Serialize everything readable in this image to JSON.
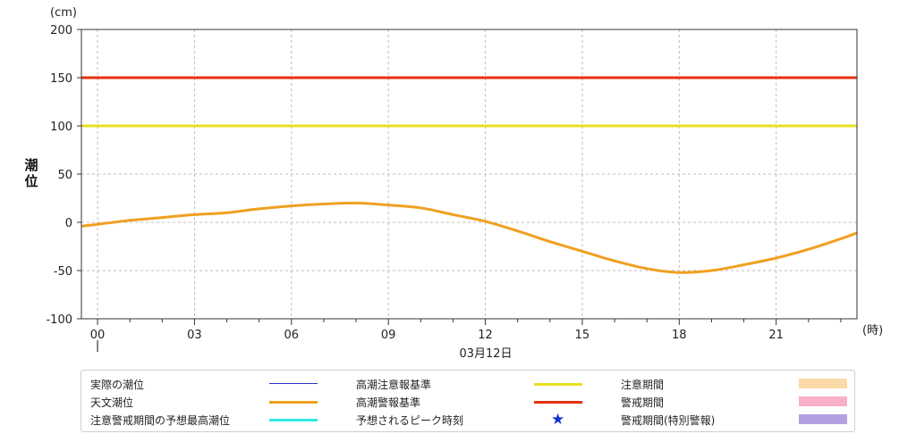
{
  "chart_data": {
    "type": "line",
    "ylabel": "潮位",
    "y_unit": "(cm)",
    "x_unit": "(時)",
    "date_label": "03月12日",
    "ylim": [
      -100,
      200
    ],
    "yticks": [
      -100,
      -50,
      0,
      50,
      100,
      150,
      200
    ],
    "xlim": [
      -0.5,
      23.5
    ],
    "xticks": [
      {
        "h": 0,
        "label": "00"
      },
      {
        "h": 3,
        "label": "03"
      },
      {
        "h": 6,
        "label": "06"
      },
      {
        "h": 9,
        "label": "09"
      },
      {
        "h": 12,
        "label": "12"
      },
      {
        "h": 15,
        "label": "15"
      },
      {
        "h": 18,
        "label": "18"
      },
      {
        "h": 21,
        "label": "21"
      }
    ],
    "grid": true,
    "series": [
      {
        "name": "天文潮位",
        "color": "#f0a020",
        "points": [
          [
            -0.5,
            -4
          ],
          [
            0,
            -2
          ],
          [
            1,
            2
          ],
          [
            2,
            5
          ],
          [
            3,
            8
          ],
          [
            4,
            10
          ],
          [
            5,
            14
          ],
          [
            6,
            17
          ],
          [
            7,
            19
          ],
          [
            8,
            20
          ],
          [
            9,
            18
          ],
          [
            10,
            15
          ],
          [
            11,
            8
          ],
          [
            12,
            1
          ],
          [
            13,
            -9
          ],
          [
            14,
            -20
          ],
          [
            15,
            -30
          ],
          [
            16,
            -40
          ],
          [
            17,
            -48
          ],
          [
            18,
            -52
          ],
          [
            19,
            -50
          ],
          [
            20,
            -44
          ],
          [
            21,
            -37
          ],
          [
            22,
            -28
          ],
          [
            23,
            -17
          ],
          [
            23.5,
            -11
          ]
        ]
      }
    ],
    "thresholds": [
      {
        "name": "高潮注意報基準",
        "value": 100,
        "color": "#e8e020"
      },
      {
        "name": "高潮警報基準",
        "value": 150,
        "color": "#e83010"
      }
    ]
  },
  "legend": {
    "items": [
      {
        "label": "実際の潮位",
        "kind": "line",
        "color": "#3030c8"
      },
      {
        "label": "天文潮位",
        "kind": "line",
        "color": "#f0a020"
      },
      {
        "label": "注意警戒期間の予想最高潮位",
        "kind": "line",
        "color": "#30e8e8"
      },
      {
        "label": "高潮注意報基準",
        "kind": "line",
        "color": "#e8e020"
      },
      {
        "label": "高潮警報基準",
        "kind": "line",
        "color": "#e83010"
      },
      {
        "label": "予想されるピーク時刻",
        "kind": "star",
        "color": "#1030d0",
        "symbol": "★"
      },
      {
        "label": "注意期間",
        "kind": "rect",
        "color": "#fcd9a8"
      },
      {
        "label": "警戒期間",
        "kind": "rect",
        "color": "#f8b0c8"
      },
      {
        "label": "警戒期間(特別警報)",
        "kind": "rect",
        "color": "#b4a0e0"
      }
    ]
  }
}
